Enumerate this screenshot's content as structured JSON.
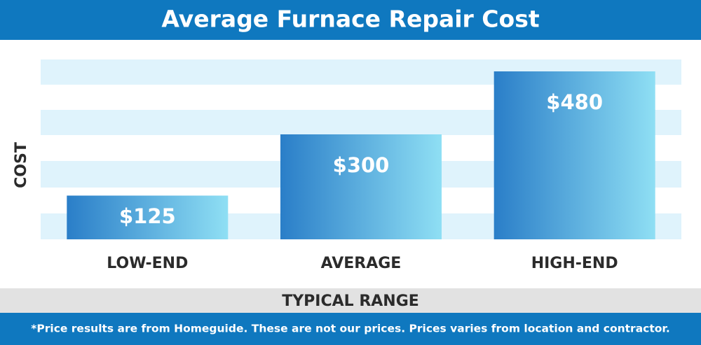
{
  "chart_data": {
    "type": "bar",
    "title": "Average Furnace Repair Cost",
    "y_label": "COST",
    "x_label": "TYPICAL RANGE",
    "footnote": "*Price results are from Homeguide. These are not our prices. Prices varies from location and contractor.",
    "categories": [
      "LOW-END",
      "AVERAGE",
      "HIGH-END"
    ],
    "values": [
      125,
      300,
      480
    ],
    "value_labels": [
      "$125",
      "$300",
      "$480"
    ],
    "color": "#2a7ec8",
    "ylim": [
      0,
      500
    ]
  }
}
